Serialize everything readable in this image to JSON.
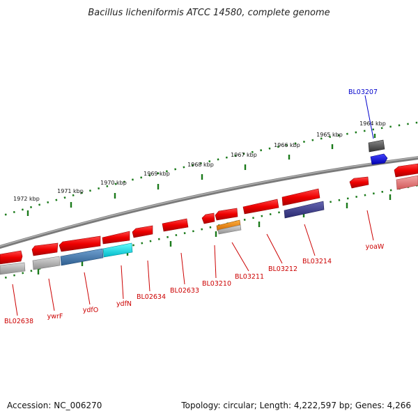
{
  "title": "Bacillus licheniformis ATCC 14580, complete genome",
  "footer": {
    "accession": "Accession: NC_006270",
    "summary": "Topology: circular; Length: 4,222,597 bp; Genes: 4,266"
  },
  "colors": {
    "gene_red": "#ee0000",
    "label_red": "#cc0000",
    "label_blue": "#0000cc",
    "tick_green": "#1a7a1a",
    "backbone": "#888888",
    "gene_blue": "#0000ee",
    "gene_steel": "#4a7fb5",
    "gene_cyan": "#00e5e5",
    "gene_orange": "#ff8c00",
    "gene_navy": "#3c3c8c",
    "gene_gray": "#b0b0b0",
    "gene_dark_gray": "#555555",
    "gene_pink": "#e87878"
  },
  "kbp_ticks": [
    {
      "label": "1964 kbp"
    },
    {
      "label": "1965 kbp"
    },
    {
      "label": "1966 kbp"
    },
    {
      "label": "1967 kbp"
    },
    {
      "label": "1968 kbp"
    },
    {
      "label": "1969 kbp"
    },
    {
      "label": "1970 kbp"
    },
    {
      "label": "1971 kbp"
    },
    {
      "label": "1972 kbp"
    }
  ],
  "gene_labels": [
    {
      "text": "BL03207",
      "color": "blue"
    },
    {
      "text": "yoaW",
      "color": "red"
    },
    {
      "text": "BL03214",
      "color": "red"
    },
    {
      "text": "BL03212",
      "color": "red"
    },
    {
      "text": "BL03211",
      "color": "red"
    },
    {
      "text": "BL03210",
      "color": "red"
    },
    {
      "text": "BL02633",
      "color": "red"
    },
    {
      "text": "BL02634",
      "color": "red"
    },
    {
      "text": "ydfN",
      "color": "red"
    },
    {
      "text": "ydfO",
      "color": "red"
    },
    {
      "text": "ywrF",
      "color": "red"
    },
    {
      "text": "BL02638",
      "color": "red"
    }
  ]
}
